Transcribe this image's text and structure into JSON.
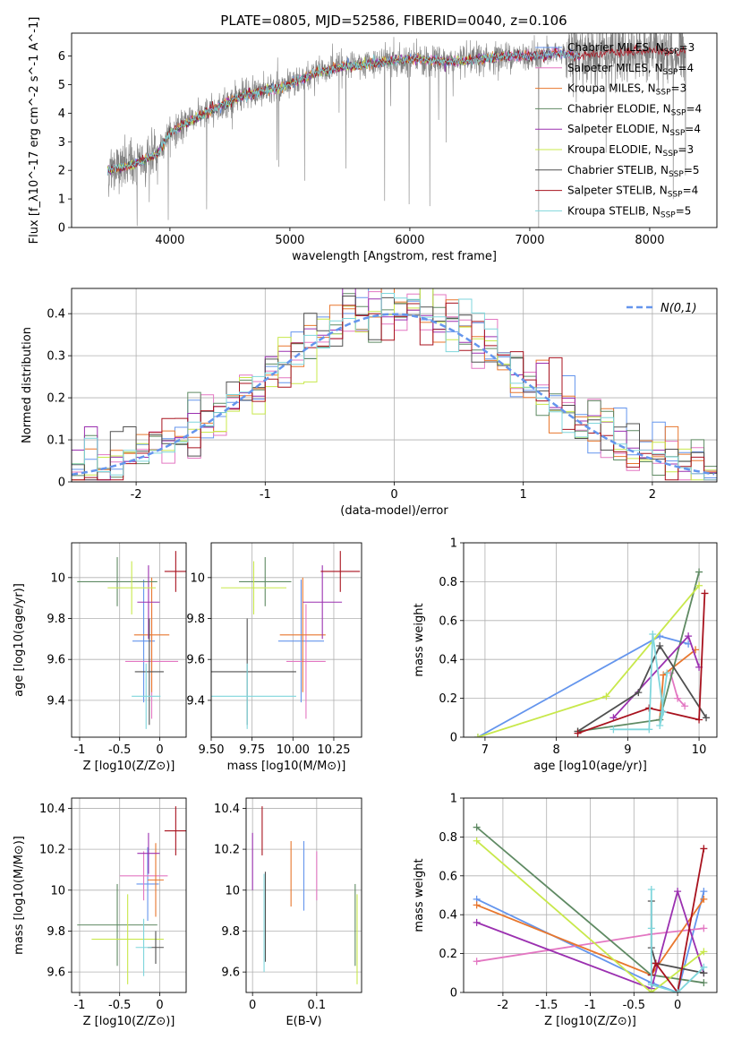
{
  "figure_title": "PLATE=0805, MJD=52586, FIBERID=0040, z=0.106",
  "colors": {
    "chabrier_miles": "#6495ED",
    "salpeter_miles": "#e377c2",
    "kroupa_miles": "#e8772e",
    "chabrier_elodie": "#5f8a63",
    "salpeter_elodie": "#9b30b0",
    "kroupa_elodie": "#c8e84b",
    "chabrier_stelib": "#505050",
    "salpeter_stelib": "#a8121e",
    "kroupa_stelib": "#7fd6dc",
    "data": "#808080",
    "grid": "#b0b0b0"
  },
  "chart_data": [
    {
      "id": "spectrum",
      "type": "line",
      "xlabel": "wavelength [Angstrom, rest frame]",
      "ylabel": "Flux [f_λ10^-17 erg cm^-2 s^-1 A^-1]",
      "xlim": [
        3180,
        8560
      ],
      "ylim": [
        0,
        6.8
      ],
      "xticks": [
        4000,
        5000,
        6000,
        7000,
        8000
      ],
      "yticks": [
        0,
        1,
        2,
        3,
        4,
        5,
        6
      ],
      "grid": false,
      "legend_position": "top-right",
      "legend": [
        {
          "name": "Chabrier MILES, N_SSP=3",
          "base": "Chabrier MILES, N",
          "sub": "SSP",
          "tail": "=3",
          "color_key": "chabrier_miles"
        },
        {
          "name": "Salpeter MILES, N_SSP=4",
          "base": "Salpeter MILES, N",
          "sub": "SSP",
          "tail": "=4",
          "color_key": "salpeter_miles"
        },
        {
          "name": "Kroupa MILES, N_SSP=3",
          "base": "Kroupa MILES, N",
          "sub": "SSP",
          "tail": "=3",
          "color_key": "kroupa_miles"
        },
        {
          "name": "Chabrier ELODIE, N_SSP=4",
          "base": "Chabrier ELODIE, N",
          "sub": "SSP",
          "tail": "=4",
          "color_key": "chabrier_elodie"
        },
        {
          "name": "Salpeter ELODIE, N_SSP=4",
          "base": "Salpeter ELODIE, N",
          "sub": "SSP",
          "tail": "=4",
          "color_key": "salpeter_elodie"
        },
        {
          "name": "Kroupa ELODIE, N_SSP=3",
          "base": "Kroupa ELODIE, N",
          "sub": "SSP",
          "tail": "=3",
          "color_key": "kroupa_elodie"
        },
        {
          "name": "Chabrier STELIB, N_SSP=5",
          "base": "Chabrier STELIB, N",
          "sub": "SSP",
          "tail": "=5",
          "color_key": "chabrier_stelib"
        },
        {
          "name": "Salpeter STELIB, N_SSP=4",
          "base": "Salpeter STELIB, N",
          "sub": "SSP",
          "tail": "=4",
          "color_key": "salpeter_stelib"
        },
        {
          "name": "Kroupa STELIB, N_SSP=5",
          "base": "Kroupa STELIB, N",
          "sub": "SSP",
          "tail": "=5",
          "color_key": "kroupa_stelib"
        }
      ],
      "continuum_model": {
        "x": [
          3500,
          3700,
          3900,
          4000,
          4200,
          4400,
          4600,
          4800,
          5000,
          5200,
          5400,
          5600,
          5800,
          6000,
          6200,
          6400,
          6600,
          6800,
          7000,
          7200,
          7400,
          7600,
          7800,
          8000,
          8200,
          8300
        ],
        "y": [
          2.0,
          2.2,
          2.6,
          3.3,
          3.8,
          4.2,
          4.6,
          4.8,
          5.0,
          5.4,
          5.6,
          5.7,
          5.8,
          5.9,
          5.85,
          5.8,
          5.9,
          6.0,
          6.0,
          6.1,
          6.0,
          6.1,
          6.1,
          6.2,
          6.1,
          6.2
        ]
      },
      "data_range": [
        3480,
        8300
      ],
      "fit_ranges": [
        [
          3480,
          7420
        ],
        [
          3480,
          7420
        ],
        [
          3480,
          7420
        ],
        [
          3480,
          6800
        ],
        [
          3480,
          7420
        ],
        [
          3480,
          6800
        ],
        [
          3480,
          7420
        ],
        [
          3480,
          8300
        ],
        [
          3480,
          7420
        ]
      ]
    },
    {
      "id": "residual_hist",
      "type": "step",
      "xlabel": "(data-model)/error",
      "ylabel": "Normed distribution",
      "xlim": [
        -2.5,
        2.5
      ],
      "ylim": [
        0,
        0.46
      ],
      "xticks": [
        -2,
        -1,
        0,
        1,
        2
      ],
      "yticks": [
        0.0,
        0.1,
        0.2,
        0.3,
        0.4
      ],
      "grid": true,
      "bin_width": 0.1,
      "reference_curve": {
        "name": "N(0,1)",
        "style": "dashed",
        "color_key": "chabrier_miles"
      },
      "legend_position": "top-right"
    },
    {
      "id": "age_vs_Z",
      "type": "errorbar",
      "xlabel": "Z [log10(Z/Z⊙)]",
      "ylabel": "age [log10(age/yr)]",
      "xlim": [
        -1.1,
        0.33
      ],
      "ylim": [
        9.22,
        10.17
      ],
      "xticks": [
        -1.0,
        -0.5,
        0.0
      ],
      "yticks": [
        9.4,
        9.6,
        9.8,
        10.0
      ],
      "grid": true,
      "points": [
        {
          "color_key": "chabrier_miles",
          "x": -0.2,
          "xerr": 0.14,
          "y": 9.69,
          "yerr": 0.3
        },
        {
          "color_key": "salpeter_miles",
          "x": -0.1,
          "xerr": 0.33,
          "y": 9.59,
          "yerr": 0.28
        },
        {
          "color_key": "kroupa_miles",
          "x": -0.1,
          "xerr": 0.22,
          "y": 9.72,
          "yerr": 0.28
        },
        {
          "color_key": "chabrier_elodie",
          "x": -0.53,
          "xerr": 0.5,
          "y": 9.98,
          "yerr": 0.12
        },
        {
          "color_key": "salpeter_elodie",
          "x": -0.14,
          "xerr": 0.14,
          "y": 9.88,
          "yerr": 0.18
        },
        {
          "color_key": "kroupa_elodie",
          "x": -0.35,
          "xerr": 0.3,
          "y": 9.95,
          "yerr": 0.13
        },
        {
          "color_key": "chabrier_stelib",
          "x": -0.13,
          "xerr": 0.18,
          "y": 9.54,
          "yerr": 0.26
        },
        {
          "color_key": "salpeter_stelib",
          "x": 0.2,
          "xerr": 0.14,
          "y": 10.03,
          "yerr": 0.1
        },
        {
          "color_key": "kroupa_stelib",
          "x": -0.17,
          "xerr": 0.18,
          "y": 9.42,
          "yerr": 0.16
        }
      ]
    },
    {
      "id": "age_vs_mass",
      "type": "errorbar",
      "xlabel": "mass [log10(M/M⊙)]",
      "ylabel": "",
      "xlim": [
        9.5,
        10.42
      ],
      "ylim": [
        9.22,
        10.17
      ],
      "xticks": [
        9.5,
        9.75,
        10.0,
        10.25
      ],
      "xticklabels": [
        "9.50",
        "9.75",
        "10.00",
        "10.25"
      ],
      "yticks": [
        9.4,
        9.6,
        9.8,
        10.0
      ],
      "grid": true,
      "points": [
        {
          "color_key": "chabrier_miles",
          "x": 10.05,
          "xerr": 0.14,
          "y": 9.69,
          "yerr": 0.3
        },
        {
          "color_key": "salpeter_miles",
          "x": 10.08,
          "xerr": 0.12,
          "y": 9.59,
          "yerr": 0.28
        },
        {
          "color_key": "kroupa_miles",
          "x": 10.06,
          "xerr": 0.14,
          "y": 9.72,
          "yerr": 0.28
        },
        {
          "color_key": "chabrier_elodie",
          "x": 9.83,
          "xerr": 0.16,
          "y": 9.98,
          "yerr": 0.12
        },
        {
          "color_key": "salpeter_elodie",
          "x": 10.18,
          "xerr": 0.12,
          "y": 9.88,
          "yerr": 0.18
        },
        {
          "color_key": "kroupa_elodie",
          "x": 9.76,
          "xerr": 0.2,
          "y": 9.95,
          "yerr": 0.13
        },
        {
          "color_key": "chabrier_stelib",
          "x": 9.72,
          "xerr": 0.3,
          "y": 9.54,
          "yerr": 0.26
        },
        {
          "color_key": "salpeter_stelib",
          "x": 10.29,
          "xerr": 0.12,
          "y": 10.03,
          "yerr": 0.1
        },
        {
          "color_key": "kroupa_stelib",
          "x": 9.72,
          "xerr": 0.3,
          "y": 9.42,
          "yerr": 0.16
        }
      ]
    },
    {
      "id": "massweight_vs_age",
      "type": "line",
      "xlabel": "age [log10(age/yr)]",
      "ylabel": "mass weight",
      "xlim": [
        6.7,
        10.25
      ],
      "ylim": [
        0,
        1
      ],
      "xticks": [
        7,
        8,
        9,
        10
      ],
      "yticks": [
        0.0,
        0.2,
        0.4,
        0.6,
        0.8,
        1.0
      ],
      "grid": true,
      "series": [
        {
          "color_key": "chabrier_miles",
          "x": [
            6.9,
            9.45,
            9.85
          ],
          "y": [
            0.0,
            0.52,
            0.48
          ]
        },
        {
          "color_key": "salpeter_miles",
          "x": [
            9.6,
            9.7,
            9.8
          ],
          "y": [
            0.33,
            0.2,
            0.16
          ]
        },
        {
          "color_key": "kroupa_miles",
          "x": [
            9.45,
            9.5,
            9.95
          ],
          "y": [
            0.09,
            0.32,
            0.45
          ]
        },
        {
          "color_key": "chabrier_elodie",
          "x": [
            8.3,
            9.45,
            10.0
          ],
          "y": [
            0.03,
            0.09,
            0.85
          ]
        },
        {
          "color_key": "salpeter_elodie",
          "x": [
            8.8,
            9.85,
            10.0
          ],
          "y": [
            0.1,
            0.52,
            0.36
          ]
        },
        {
          "color_key": "kroupa_elodie",
          "x": [
            6.9,
            8.7,
            10.0
          ],
          "y": [
            0.0,
            0.21,
            0.78
          ]
        },
        {
          "color_key": "chabrier_stelib",
          "x": [
            8.3,
            9.15,
            9.45,
            10.1
          ],
          "y": [
            0.03,
            0.23,
            0.47,
            0.1
          ]
        },
        {
          "color_key": "salpeter_stelib",
          "x": [
            8.3,
            9.3,
            10.0,
            10.08
          ],
          "y": [
            0.02,
            0.15,
            0.09,
            0.74
          ]
        },
        {
          "color_key": "kroupa_stelib",
          "x": [
            8.8,
            9.3,
            9.35,
            9.5,
            9.45,
            9.55
          ],
          "y": [
            0.04,
            0.04,
            0.53,
            0.13,
            0.06,
            0.33
          ]
        }
      ]
    },
    {
      "id": "mass_vs_Z",
      "type": "errorbar",
      "xlabel": "Z [log10(Z/Z⊙)]",
      "ylabel": "mass [log10(M/M⊙)]",
      "xlim": [
        -1.1,
        0.33
      ],
      "ylim": [
        9.5,
        10.45
      ],
      "xticks": [
        -1.0,
        -0.5,
        0.0
      ],
      "yticks": [
        9.6,
        9.8,
        10.0,
        10.2,
        10.4
      ],
      "grid": true,
      "points": [
        {
          "color_key": "chabrier_miles",
          "x": -0.15,
          "xerr": 0.14,
          "y": 10.03,
          "yerr": 0.18
        },
        {
          "color_key": "salpeter_miles",
          "x": -0.2,
          "xerr": 0.3,
          "y": 10.07,
          "yerr": 0.12
        },
        {
          "color_key": "kroupa_miles",
          "x": -0.05,
          "xerr": 0.1,
          "y": 10.05,
          "yerr": 0.18
        },
        {
          "color_key": "chabrier_elodie",
          "x": -0.53,
          "xerr": 0.5,
          "y": 9.83,
          "yerr": 0.2
        },
        {
          "color_key": "salpeter_elodie",
          "x": -0.14,
          "xerr": 0.14,
          "y": 10.18,
          "yerr": 0.1
        },
        {
          "color_key": "kroupa_elodie",
          "x": -0.4,
          "xerr": 0.45,
          "y": 9.76,
          "yerr": 0.22
        },
        {
          "color_key": "chabrier_stelib",
          "x": -0.05,
          "xerr": 0.1,
          "y": 9.72,
          "yerr": 0.08
        },
        {
          "color_key": "salpeter_stelib",
          "x": 0.2,
          "xerr": 0.14,
          "y": 10.29,
          "yerr": 0.12
        },
        {
          "color_key": "kroupa_stelib",
          "x": -0.2,
          "xerr": 0.1,
          "y": 9.72,
          "yerr": 0.14
        }
      ]
    },
    {
      "id": "mass_vs_ebv",
      "type": "errorbar",
      "xlabel": "E(B-V)",
      "ylabel": "",
      "xlim": [
        -0.01,
        0.17
      ],
      "ylim": [
        9.5,
        10.45
      ],
      "xticks": [
        0.0,
        0.1
      ],
      "yticks": [
        9.6,
        9.8,
        10.0,
        10.2,
        10.4
      ],
      "grid": true,
      "points": [
        {
          "color_key": "chabrier_miles",
          "x": 0.08,
          "y": 10.07,
          "yerr": 0.17
        },
        {
          "color_key": "salpeter_miles",
          "x": 0.1,
          "y": 10.07,
          "yerr": 0.12
        },
        {
          "color_key": "kroupa_miles",
          "x": 0.06,
          "y": 10.08,
          "yerr": 0.16
        },
        {
          "color_key": "chabrier_elodie",
          "x": 0.16,
          "y": 9.83,
          "yerr": 0.2
        },
        {
          "color_key": "salpeter_elodie",
          "x": 0.0,
          "y": 10.14,
          "yerr": 0.14
        },
        {
          "color_key": "kroupa_elodie",
          "x": 0.163,
          "y": 9.76,
          "yerr": 0.22
        },
        {
          "color_key": "chabrier_stelib",
          "x": 0.02,
          "y": 9.87,
          "yerr": 0.22
        },
        {
          "color_key": "salpeter_stelib",
          "x": 0.015,
          "y": 10.29,
          "yerr": 0.12
        },
        {
          "color_key": "kroupa_stelib",
          "x": 0.018,
          "y": 9.84,
          "yerr": 0.24
        }
      ]
    },
    {
      "id": "massweight_vs_Z",
      "type": "line",
      "xlabel": "Z [log10(Z/Z⊙)]",
      "ylabel": "mass weight",
      "xlim": [
        -2.45,
        0.45
      ],
      "ylim": [
        0,
        1
      ],
      "xticks": [
        -2.0,
        -1.5,
        -1.0,
        -0.5,
        0.0
      ],
      "yticks": [
        0.0,
        0.2,
        0.4,
        0.6,
        0.8,
        1.0
      ],
      "grid": true,
      "series": [
        {
          "color_key": "chabrier_miles",
          "x": [
            -2.3,
            -0.3,
            0.0,
            0.3
          ],
          "y": [
            0.48,
            0.05,
            0.0,
            0.52
          ]
        },
        {
          "color_key": "salpeter_miles",
          "x": [
            -2.3,
            -0.3,
            0.3
          ],
          "y": [
            0.16,
            0.3,
            0.33
          ]
        },
        {
          "color_key": "kroupa_miles",
          "x": [
            -2.3,
            -0.3,
            0.3
          ],
          "y": [
            0.45,
            0.09,
            0.48
          ]
        },
        {
          "color_key": "chabrier_elodie",
          "x": [
            -2.3,
            -0.3,
            0.3
          ],
          "y": [
            0.85,
            0.09,
            0.05
          ]
        },
        {
          "color_key": "salpeter_elodie",
          "x": [
            -2.3,
            -0.3,
            0.0,
            0.3
          ],
          "y": [
            0.36,
            0.02,
            0.52,
            0.1
          ]
        },
        {
          "color_key": "kroupa_elodie",
          "x": [
            -2.3,
            -0.3,
            0.3
          ],
          "y": [
            0.78,
            0.0,
            0.21
          ]
        },
        {
          "color_key": "chabrier_stelib",
          "x": [
            -0.3,
            -0.3,
            -0.25,
            0.3
          ],
          "y": [
            0.47,
            0.23,
            0.15,
            0.1
          ]
        },
        {
          "color_key": "salpeter_stelib",
          "x": [
            -0.3,
            -0.25,
            0.0,
            0.3
          ],
          "y": [
            0.09,
            0.15,
            0.0,
            0.74
          ]
        },
        {
          "color_key": "kroupa_stelib",
          "x": [
            -0.3,
            -0.3,
            -0.3,
            0.0,
            0.3
          ],
          "y": [
            0.53,
            0.33,
            0.04,
            0.0,
            0.13
          ]
        }
      ]
    }
  ]
}
